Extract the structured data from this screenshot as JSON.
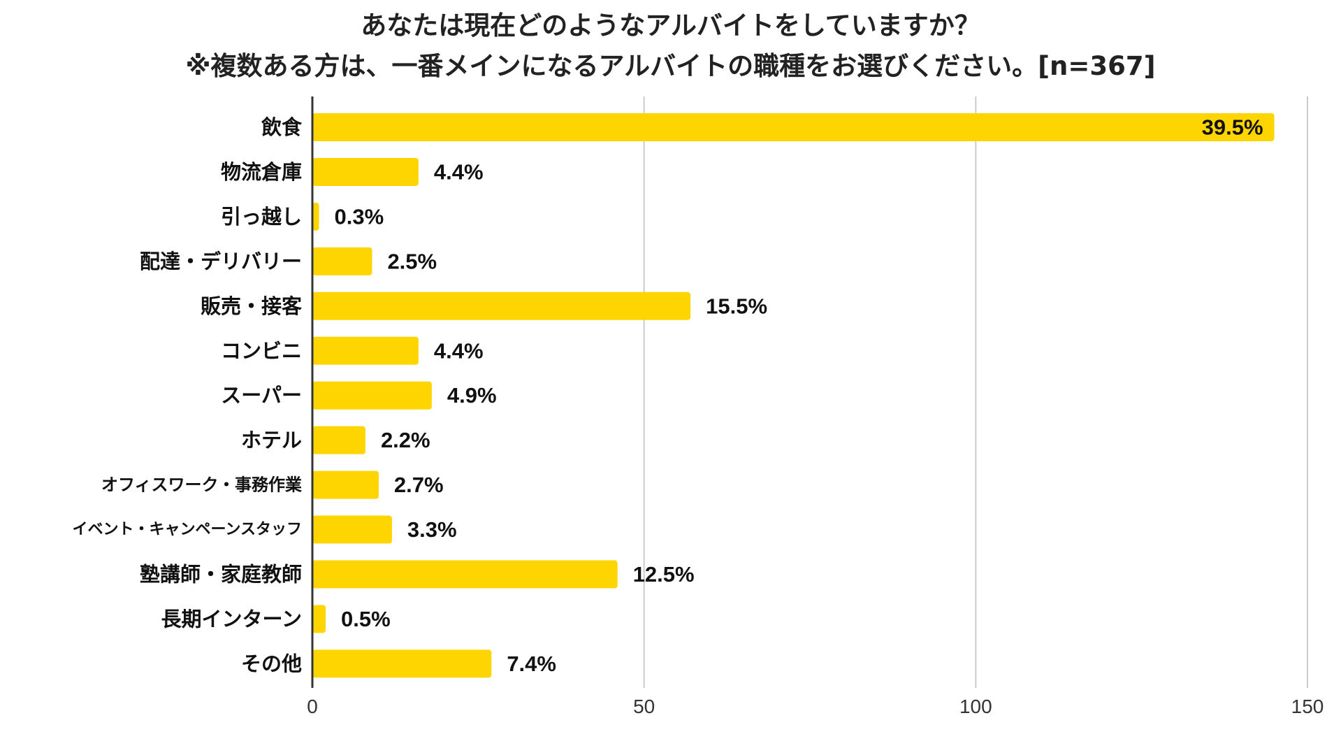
{
  "chart_data": {
    "type": "bar",
    "orientation": "horizontal",
    "title_line1": "あなたは現在どのようなアルバイトをしていますか？",
    "title_line2": "※複数ある方は、一番メインになるアルバイトの職種をお選びください。[n=367]",
    "categories": [
      "飲食",
      "物流倉庫",
      "引っ越し",
      "配達・デリバリー",
      "販売・接客",
      "コンビニ",
      "スーパー",
      "ホテル",
      "オフィスワーク・事務作業",
      "イベント・キャンペーンスタッフ",
      "塾講師・家庭教師",
      "長期インターン",
      "その他"
    ],
    "values": [
      145,
      16,
      1,
      9,
      57,
      16,
      18,
      8,
      10,
      12,
      46,
      2,
      27
    ],
    "data_labels": [
      "39.5%",
      "4.4%",
      "0.3%",
      "2.5%",
      "15.5%",
      "4.4%",
      "4.9%",
      "2.2%",
      "2.7%",
      "3.3%",
      "12.5%",
      "0.5%",
      "7.4%"
    ],
    "xlim": [
      0,
      150
    ],
    "xticks": [
      "0",
      "50",
      "100",
      "150"
    ],
    "xtick_values": [
      0,
      50,
      100,
      150
    ],
    "grid": "vertical",
    "bar_color": "#FFD500",
    "grid_color": "#cccccc",
    "axis_color": "#333333"
  }
}
